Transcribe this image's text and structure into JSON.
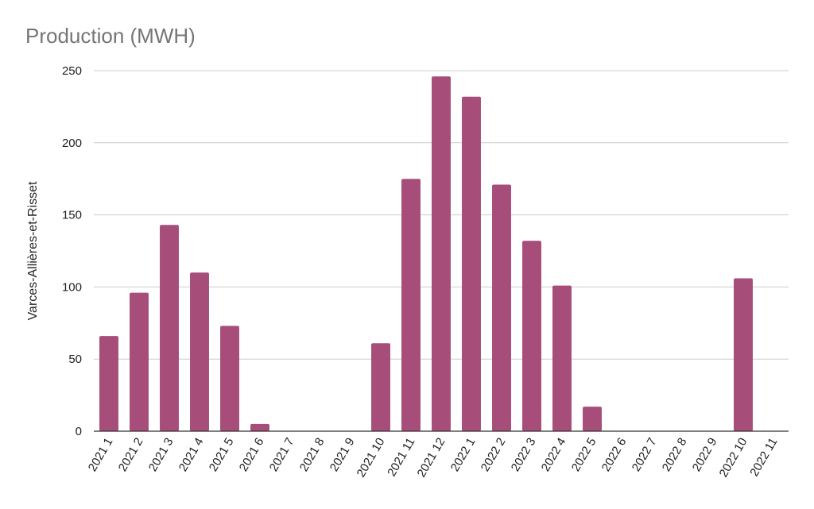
{
  "chart_data": {
    "type": "bar",
    "title": "Production (MWH)",
    "xlabel": "",
    "ylabel": "Varces-Allières-et-Risset",
    "ylim": [
      0,
      250
    ],
    "yticks": [
      0,
      50,
      100,
      150,
      200,
      250
    ],
    "grid": true,
    "categories": [
      "2021 1",
      "2021 2",
      "2021 3",
      "2021 4",
      "2021 5",
      "2021 6",
      "2021 7",
      "2021 8",
      "2021 9",
      "2021 10",
      "2021 11",
      "2021 12",
      "2022 1",
      "2022 2",
      "2022 3",
      "2022 4",
      "2022 5",
      "2022 6",
      "2022 7",
      "2022 8",
      "2022 9",
      "2022 10",
      "2022 11"
    ],
    "series": [
      {
        "values": [
          66,
          96,
          143,
          110,
          73,
          5,
          0,
          0,
          0,
          61,
          175,
          246,
          232,
          171,
          132,
          101,
          17,
          0,
          0,
          0,
          0,
          106,
          0
        ],
        "color": "#a64d79"
      }
    ]
  }
}
